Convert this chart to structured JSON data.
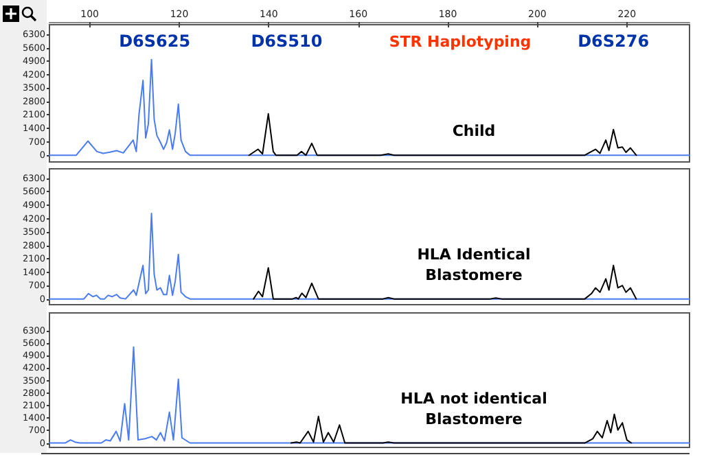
{
  "chart_data": [
    {
      "type": "line",
      "title": "STR Haplotyping",
      "xlim": [
        91,
        234
      ],
      "xticks": [
        100,
        120,
        140,
        160,
        180,
        200,
        220
      ],
      "ylim": [
        -350,
        6800
      ],
      "yticks": [
        0,
        700,
        1400,
        2100,
        2800,
        3500,
        4200,
        4900,
        5600,
        6300
      ],
      "marker": "none",
      "line_style": "solid",
      "annotations": [
        "D6S625",
        "D6S510",
        "D6S276",
        "Child"
      ],
      "series": [
        {
          "color": "#4a7cf0",
          "x": [
            91,
            97,
            99.6,
            101.6,
            103,
            104.5,
            106,
            107.5,
            109.7,
            110.4,
            111,
            111.9,
            112.5,
            113.1,
            113.8,
            114.4,
            115,
            115.8,
            116.5,
            117.2,
            117.8,
            118.5,
            119.1,
            119.8,
            120.4,
            121.4,
            122.4,
            234
          ],
          "values": [
            0,
            0,
            740,
            190,
            100,
            160,
            240,
            120,
            790,
            190,
            2100,
            3900,
            900,
            1630,
            4990,
            1870,
            1030,
            670,
            310,
            670,
            1320,
            310,
            1150,
            2660,
            790,
            190,
            0,
            0
          ]
        },
        {
          "color": "#000000",
          "x": [
            135.6,
            137.6,
            138.6,
            139.9,
            141,
            141.6,
            143,
            146.3,
            147.3,
            148.3,
            149.6,
            150.8,
            160,
            165,
            166.7,
            168,
            190,
            210.6,
            213,
            214,
            215.3,
            216,
            217,
            218,
            219,
            219.8,
            220.8,
            222.1
          ],
          "values": [
            0,
            310,
            70,
            2160,
            190,
            0,
            0,
            0,
            190,
            0,
            620,
            0,
            0,
            0,
            70,
            0,
            0,
            0,
            310,
            100,
            790,
            250,
            1340,
            380,
            430,
            150,
            380,
            0
          ]
        }
      ]
    },
    {
      "type": "line",
      "xlim": [
        91,
        234
      ],
      "ylim": [
        -300,
        6800
      ],
      "yticks": [
        0,
        700,
        1400,
        2100,
        2800,
        3500,
        4200,
        4900,
        5600,
        6300
      ],
      "tick_labels": "y",
      "marker": "none",
      "line_style": "solid",
      "annotations": [
        "HLA Identical\nBlastomere"
      ],
      "series": [
        {
          "color": "#4a7cf0",
          "x": [
            91,
            98.7,
            99.7,
            100.7,
            101.5,
            102.4,
            103.3,
            104.1,
            105,
            106,
            106.8,
            108,
            109.8,
            110.4,
            111.1,
            111.9,
            112.5,
            113.1,
            113.8,
            114.4,
            115,
            115.8,
            116.5,
            117.2,
            117.8,
            118.5,
            119.1,
            119.8,
            120.4,
            121.4,
            122.4,
            234
          ],
          "values": [
            0,
            0,
            280,
            120,
            190,
            0,
            0,
            190,
            120,
            230,
            50,
            0,
            470,
            190,
            930,
            1750,
            280,
            470,
            4470,
            1280,
            470,
            580,
            230,
            230,
            1230,
            190,
            930,
            2330,
            350,
            120,
            0,
            0
          ]
        },
        {
          "color": "#000000",
          "x": [
            136.6,
            137.7,
            138.6,
            139.9,
            141,
            143,
            145.3,
            146.1,
            146.6,
            147.4,
            148.3,
            149.6,
            151.1,
            160,
            165.5,
            166.7,
            168,
            180,
            189.5,
            190.7,
            192,
            200,
            210.6,
            212.1,
            213,
            214,
            215.3,
            216,
            217,
            218,
            219,
            219.8,
            220.8,
            222.1
          ],
          "values": [
            0,
            400,
            120,
            1630,
            0,
            0,
            0,
            70,
            0,
            300,
            70,
            820,
            0,
            0,
            0,
            70,
            0,
            0,
            0,
            50,
            0,
            0,
            0,
            280,
            580,
            350,
            1050,
            460,
            1750,
            580,
            700,
            350,
            580,
            0
          ]
        }
      ]
    },
    {
      "type": "line",
      "xlim": [
        91,
        234
      ],
      "ylim": [
        -250,
        7300
      ],
      "yticks": [
        0,
        700,
        1400,
        2100,
        2800,
        3500,
        4200,
        4900,
        5600,
        6300
      ],
      "tick_labels": "y",
      "marker": "none",
      "line_style": "solid",
      "annotations": [
        "HLA not identical\nBlastomere"
      ],
      "series": [
        {
          "color": "#4a7cf0",
          "x": [
            91,
            94.5,
            95.7,
            96.7,
            97.8,
            102.6,
            103.6,
            104.6,
            105.9,
            106.8,
            107.8,
            108.7,
            109.8,
            110.8,
            112.4,
            113.9,
            114.9,
            115.8,
            116.7,
            117.8,
            118.7,
            119.8,
            120.6,
            122.4,
            234
          ],
          "values": [
            0,
            0,
            170,
            50,
            0,
            0,
            170,
            120,
            650,
            100,
            2210,
            170,
            5380,
            170,
            240,
            360,
            170,
            580,
            120,
            1730,
            170,
            3580,
            290,
            0,
            0
          ]
        },
        {
          "color": "#000000",
          "x": [
            145,
            146.2,
            147,
            148.8,
            150,
            151.1,
            152.2,
            153.3,
            154.5,
            155.8,
            157,
            160,
            165.5,
            166.7,
            168,
            200,
            210.6,
            212.4,
            213.4,
            214.5,
            215.6,
            216.4,
            217.2,
            218,
            219,
            220,
            221
          ],
          "values": [
            0,
            50,
            0,
            650,
            50,
            1490,
            50,
            580,
            50,
            1010,
            0,
            0,
            0,
            50,
            0,
            0,
            0,
            240,
            650,
            290,
            1250,
            580,
            1610,
            720,
            1130,
            170,
            0
          ]
        }
      ]
    }
  ]
}
